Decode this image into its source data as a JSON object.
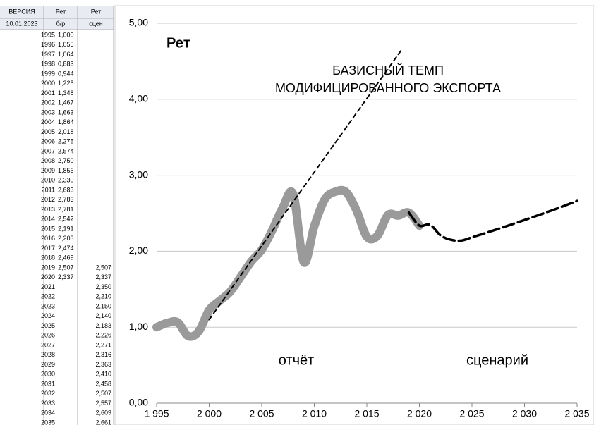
{
  "table": {
    "headers": [
      [
        "ВЕРСИЯ",
        "Рет",
        "Рет"
      ],
      [
        "10.01.2023",
        "б/р",
        "сцен"
      ]
    ],
    "years": [
      "1995",
      "1996",
      "1997",
      "1998",
      "1999",
      "2000",
      "2001",
      "2002",
      "2003",
      "2004",
      "2005",
      "2006",
      "2007",
      "2008",
      "2009",
      "2010",
      "2011",
      "2012",
      "2013",
      "2014",
      "2015",
      "2016",
      "2017",
      "2018",
      "2019",
      "2020",
      "2021",
      "2022",
      "2023",
      "2024",
      "2025",
      "2026",
      "2027",
      "2028",
      "2029",
      "2030",
      "2031",
      "2032",
      "2033",
      "2034",
      "2035"
    ],
    "report": [
      "1,000",
      "1,055",
      "1,064",
      "0,883",
      "0,944",
      "1,225",
      "1,348",
      "1,467",
      "1,663",
      "1,864",
      "2,018",
      "2,275",
      "2,574",
      "2,750",
      "1,856",
      "2,330",
      "2,683",
      "2,783",
      "2,781",
      "2,542",
      "2,191",
      "2,203",
      "2,474",
      "2,469",
      "2,507",
      "2,337"
    ],
    "scenario": [
      "2,507",
      "2,337",
      "2,350",
      "2,210",
      "2,150",
      "2,140",
      "2,183",
      "2,226",
      "2,271",
      "2,316",
      "2,363",
      "2,410",
      "2,458",
      "2,507",
      "2,557",
      "2,609",
      "2,661"
    ]
  },
  "chart_data": {
    "type": "line",
    "title": "Рет",
    "annotations": [
      "БАЗИСНЫЙ ТЕМП",
      "МОДИФИЦИРОВАННОГО ЭКСПОРТА",
      "отчёт",
      "сценарий"
    ],
    "xlim": [
      1995,
      2035
    ],
    "ylim": [
      0,
      5
    ],
    "xticks": [
      {
        "value": 1995,
        "label": "1 995"
      },
      {
        "value": 2000,
        "label": "2 000"
      },
      {
        "value": 2005,
        "label": "2 005"
      },
      {
        "value": 2010,
        "label": "2 010"
      },
      {
        "value": 2015,
        "label": "2 015"
      },
      {
        "value": 2020,
        "label": "2 020"
      },
      {
        "value": 2025,
        "label": "2 025"
      },
      {
        "value": 2030,
        "label": "2 030"
      },
      {
        "value": 2035,
        "label": "2 035"
      }
    ],
    "yticks": [
      {
        "value": 0,
        "label": "0,00"
      },
      {
        "value": 1,
        "label": "1,00"
      },
      {
        "value": 2,
        "label": "2,00"
      },
      {
        "value": 3,
        "label": "3,00"
      },
      {
        "value": 4,
        "label": "4,00"
      },
      {
        "value": 5,
        "label": "5,00"
      }
    ],
    "grid": true,
    "series": [
      {
        "color": "#9a9a9a",
        "x": [
          1995,
          1996,
          1997,
          1998,
          1999,
          2000,
          2001,
          2002,
          2003,
          2004,
          2005,
          2006,
          2007,
          2008,
          2009,
          2010,
          2011,
          2012,
          2013,
          2014,
          2015,
          2016,
          2017,
          2018,
          2019,
          2020
        ],
        "values": [
          1.0,
          1.055,
          1.064,
          0.883,
          0.944,
          1.225,
          1.348,
          1.467,
          1.663,
          1.864,
          2.018,
          2.275,
          2.574,
          2.75,
          1.856,
          2.33,
          2.683,
          2.783,
          2.781,
          2.542,
          2.191,
          2.203,
          2.474,
          2.469,
          2.507,
          2.337
        ]
      },
      {
        "color": "#000000",
        "x": [
          2019,
          2020,
          2021,
          2022,
          2023,
          2024,
          2025,
          2026,
          2027,
          2028,
          2029,
          2030,
          2031,
          2032,
          2033,
          2034,
          2035
        ],
        "values": [
          2.507,
          2.337,
          2.35,
          2.21,
          2.15,
          2.14,
          2.183,
          2.226,
          2.271,
          2.316,
          2.363,
          2.41,
          2.458,
          2.507,
          2.557,
          2.609,
          2.661
        ]
      },
      {
        "color": "#000000",
        "x": [
          2000,
          2018.3
        ],
        "values": [
          1.1,
          4.65
        ]
      }
    ]
  }
}
